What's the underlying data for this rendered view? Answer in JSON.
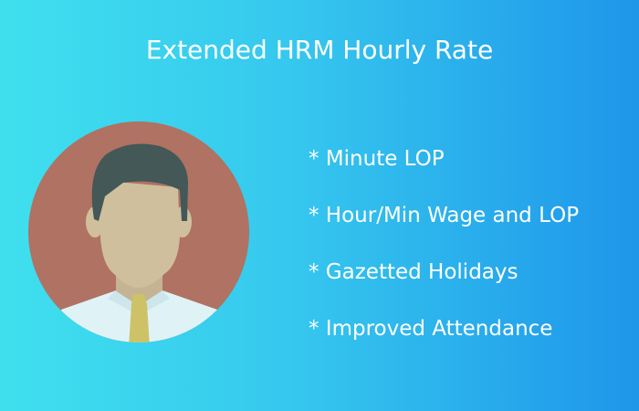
{
  "banner": {
    "title": "Extended HRM Hourly Rate",
    "features": [
      "* Minute LOP",
      "* Hour/Min Wage and LOP",
      "* Gazetted Holidays",
      "* Improved Attendance"
    ]
  },
  "colors": {
    "gradient_start": "#3fe0ee",
    "gradient_end": "#1e96ea",
    "avatar_background": "#b07262",
    "hair": "#435857",
    "skin": "#cfbf9d",
    "shirt": "#dff3f7",
    "tie": "#cdc267"
  },
  "icons": {
    "avatar": "businessman-avatar-icon"
  }
}
